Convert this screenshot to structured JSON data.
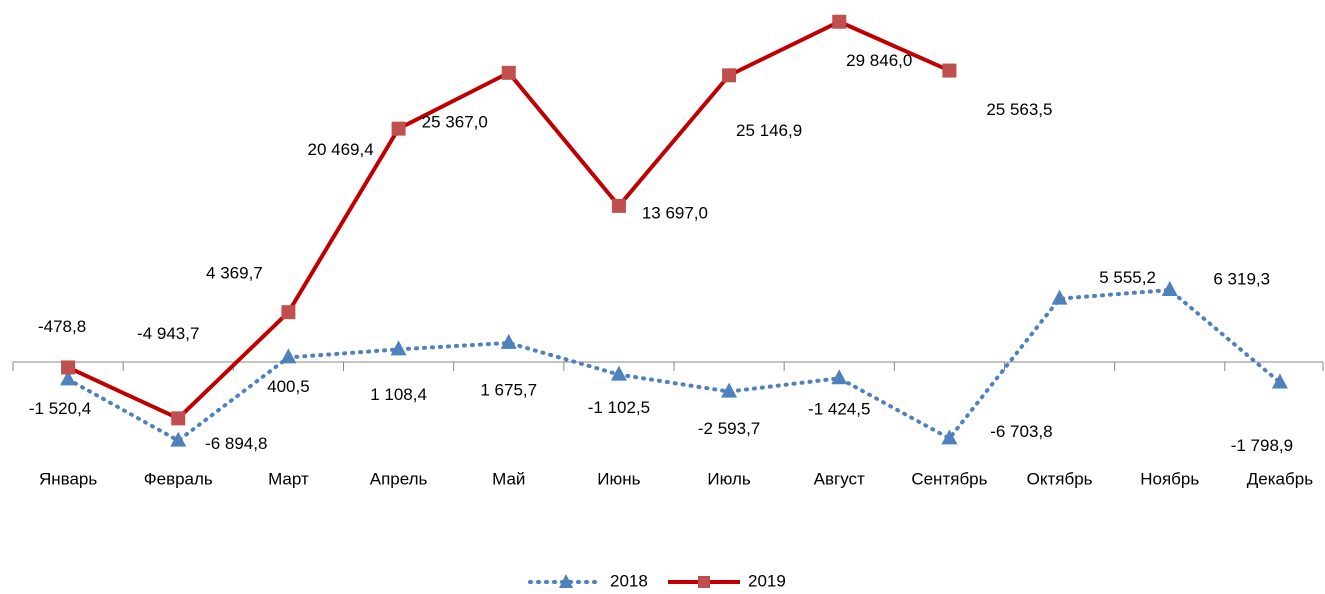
{
  "chart_data": {
    "type": "line",
    "categories": [
      "Январь",
      "Февраль",
      "Март",
      "Апрель",
      "Май",
      "Июнь",
      "Июль",
      "Август",
      "Сентябрь",
      "Октябрь",
      "Ноябрь",
      "Декабрь"
    ],
    "series": [
      {
        "name": "2018",
        "color": "#4f81bd",
        "style": "dotted",
        "marker": "triangle",
        "values": [
          -1520.4,
          -6894.8,
          400.5,
          1108.4,
          1675.7,
          -1102.5,
          -2593.7,
          -1424.5,
          -6703.8,
          5555.2,
          6319.3,
          -1798.9
        ],
        "value_labels": [
          "-1 520,4",
          "-6 894,8",
          "400,5",
          "1 108,4",
          "1 675,7",
          "-1 102,5",
          "-2 593,7",
          "-1 424,5",
          "-6 703,8",
          "5 555,2",
          "6 319,3",
          "-1 798,9"
        ]
      },
      {
        "name": "2019",
        "color": "#c00000",
        "style": "solid",
        "marker": "square",
        "values": [
          -478.8,
          -4943.7,
          4369.7,
          20469.4,
          25367.0,
          13697.0,
          25146.9,
          29846.0,
          25563.5,
          null,
          null,
          null
        ],
        "value_labels": [
          "-478,8",
          "-4 943,7",
          "4 369,7",
          "20 469,4",
          "25 367,0",
          "13 697,0",
          "25 146,9",
          "29 846,0",
          "25 563,5",
          null,
          null,
          null
        ]
      }
    ],
    "ylim": [
      -10000,
      30000
    ],
    "legend": "bottom"
  }
}
